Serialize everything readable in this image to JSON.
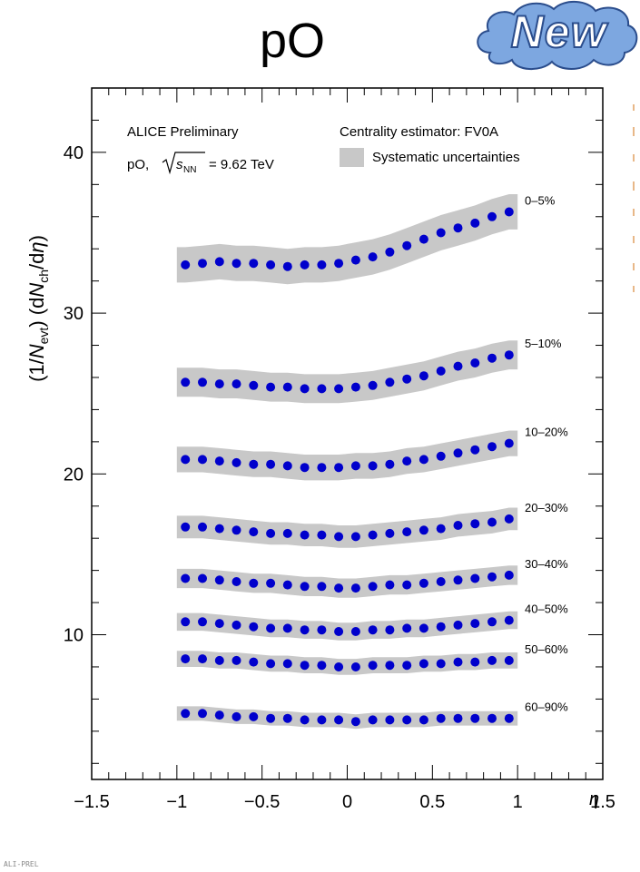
{
  "title": "pO",
  "badge": "New",
  "footer": "ALI-PREL",
  "colors": {
    "marker": "#0000cc",
    "band": "#c8c8c8",
    "badge_cloud": "#7da7e0"
  },
  "chart_data": {
    "type": "scatter",
    "title": "",
    "xlabel": "η",
    "ylabel": "(1/N_evt) (dN_ch/dη)",
    "xlim": [
      -1.5,
      1.5
    ],
    "ylim": [
      1,
      44
    ],
    "x_ticks": [
      "−1.5",
      "−1",
      "−0.5",
      "0",
      "0.5",
      "1",
      "1.5"
    ],
    "y_ticks": [
      "10",
      "20",
      "30",
      "40"
    ],
    "annotations": {
      "experiment": "ALICE Preliminary",
      "system": "pO,",
      "energy": "= 9.62 TeV",
      "estimator": "Centrality estimator: FV0A",
      "legend_syst": "Systematic uncertainties"
    },
    "x": [
      -0.95,
      -0.85,
      -0.75,
      -0.65,
      -0.55,
      -0.45,
      -0.35,
      -0.25,
      -0.15,
      -0.05,
      0.05,
      0.15,
      0.25,
      0.35,
      0.45,
      0.55,
      0.65,
      0.75,
      0.85,
      0.95
    ],
    "series": [
      {
        "name": "0–5%",
        "sys": 1.1,
        "values": [
          33.0,
          33.1,
          33.2,
          33.1,
          33.1,
          33.0,
          32.9,
          33.0,
          33.0,
          33.1,
          33.3,
          33.5,
          33.8,
          34.2,
          34.6,
          35.0,
          35.3,
          35.6,
          36.0,
          36.3
        ]
      },
      {
        "name": "5–10%",
        "sys": 0.9,
        "values": [
          25.7,
          25.7,
          25.6,
          25.6,
          25.5,
          25.4,
          25.4,
          25.3,
          25.3,
          25.3,
          25.4,
          25.5,
          25.7,
          25.9,
          26.1,
          26.4,
          26.7,
          26.9,
          27.2,
          27.4
        ]
      },
      {
        "name": "10–20%",
        "sys": 0.8,
        "values": [
          20.9,
          20.9,
          20.8,
          20.7,
          20.6,
          20.6,
          20.5,
          20.4,
          20.4,
          20.4,
          20.5,
          20.5,
          20.6,
          20.8,
          20.9,
          21.1,
          21.3,
          21.5,
          21.7,
          21.9
        ]
      },
      {
        "name": "20–30%",
        "sys": 0.7,
        "values": [
          16.7,
          16.7,
          16.6,
          16.5,
          16.4,
          16.3,
          16.3,
          16.2,
          16.2,
          16.1,
          16.1,
          16.2,
          16.3,
          16.4,
          16.5,
          16.6,
          16.8,
          16.9,
          17.0,
          17.2
        ]
      },
      {
        "name": "30–40%",
        "sys": 0.6,
        "values": [
          13.5,
          13.5,
          13.4,
          13.3,
          13.2,
          13.2,
          13.1,
          13.0,
          13.0,
          12.9,
          12.9,
          13.0,
          13.1,
          13.1,
          13.2,
          13.3,
          13.4,
          13.5,
          13.6,
          13.7
        ]
      },
      {
        "name": "40–50%",
        "sys": 0.55,
        "values": [
          10.8,
          10.8,
          10.7,
          10.6,
          10.5,
          10.4,
          10.4,
          10.3,
          10.3,
          10.2,
          10.2,
          10.3,
          10.3,
          10.4,
          10.4,
          10.5,
          10.6,
          10.7,
          10.8,
          10.9
        ]
      },
      {
        "name": "50–60%",
        "sys": 0.5,
        "values": [
          8.5,
          8.5,
          8.4,
          8.4,
          8.3,
          8.2,
          8.2,
          8.1,
          8.1,
          8.0,
          8.0,
          8.1,
          8.1,
          8.1,
          8.2,
          8.2,
          8.3,
          8.3,
          8.4,
          8.4
        ]
      },
      {
        "name": "60–90%",
        "sys": 0.45,
        "values": [
          5.1,
          5.1,
          5.0,
          4.9,
          4.9,
          4.8,
          4.8,
          4.7,
          4.7,
          4.7,
          4.6,
          4.7,
          4.7,
          4.7,
          4.7,
          4.8,
          4.8,
          4.8,
          4.8,
          4.8
        ]
      }
    ]
  }
}
